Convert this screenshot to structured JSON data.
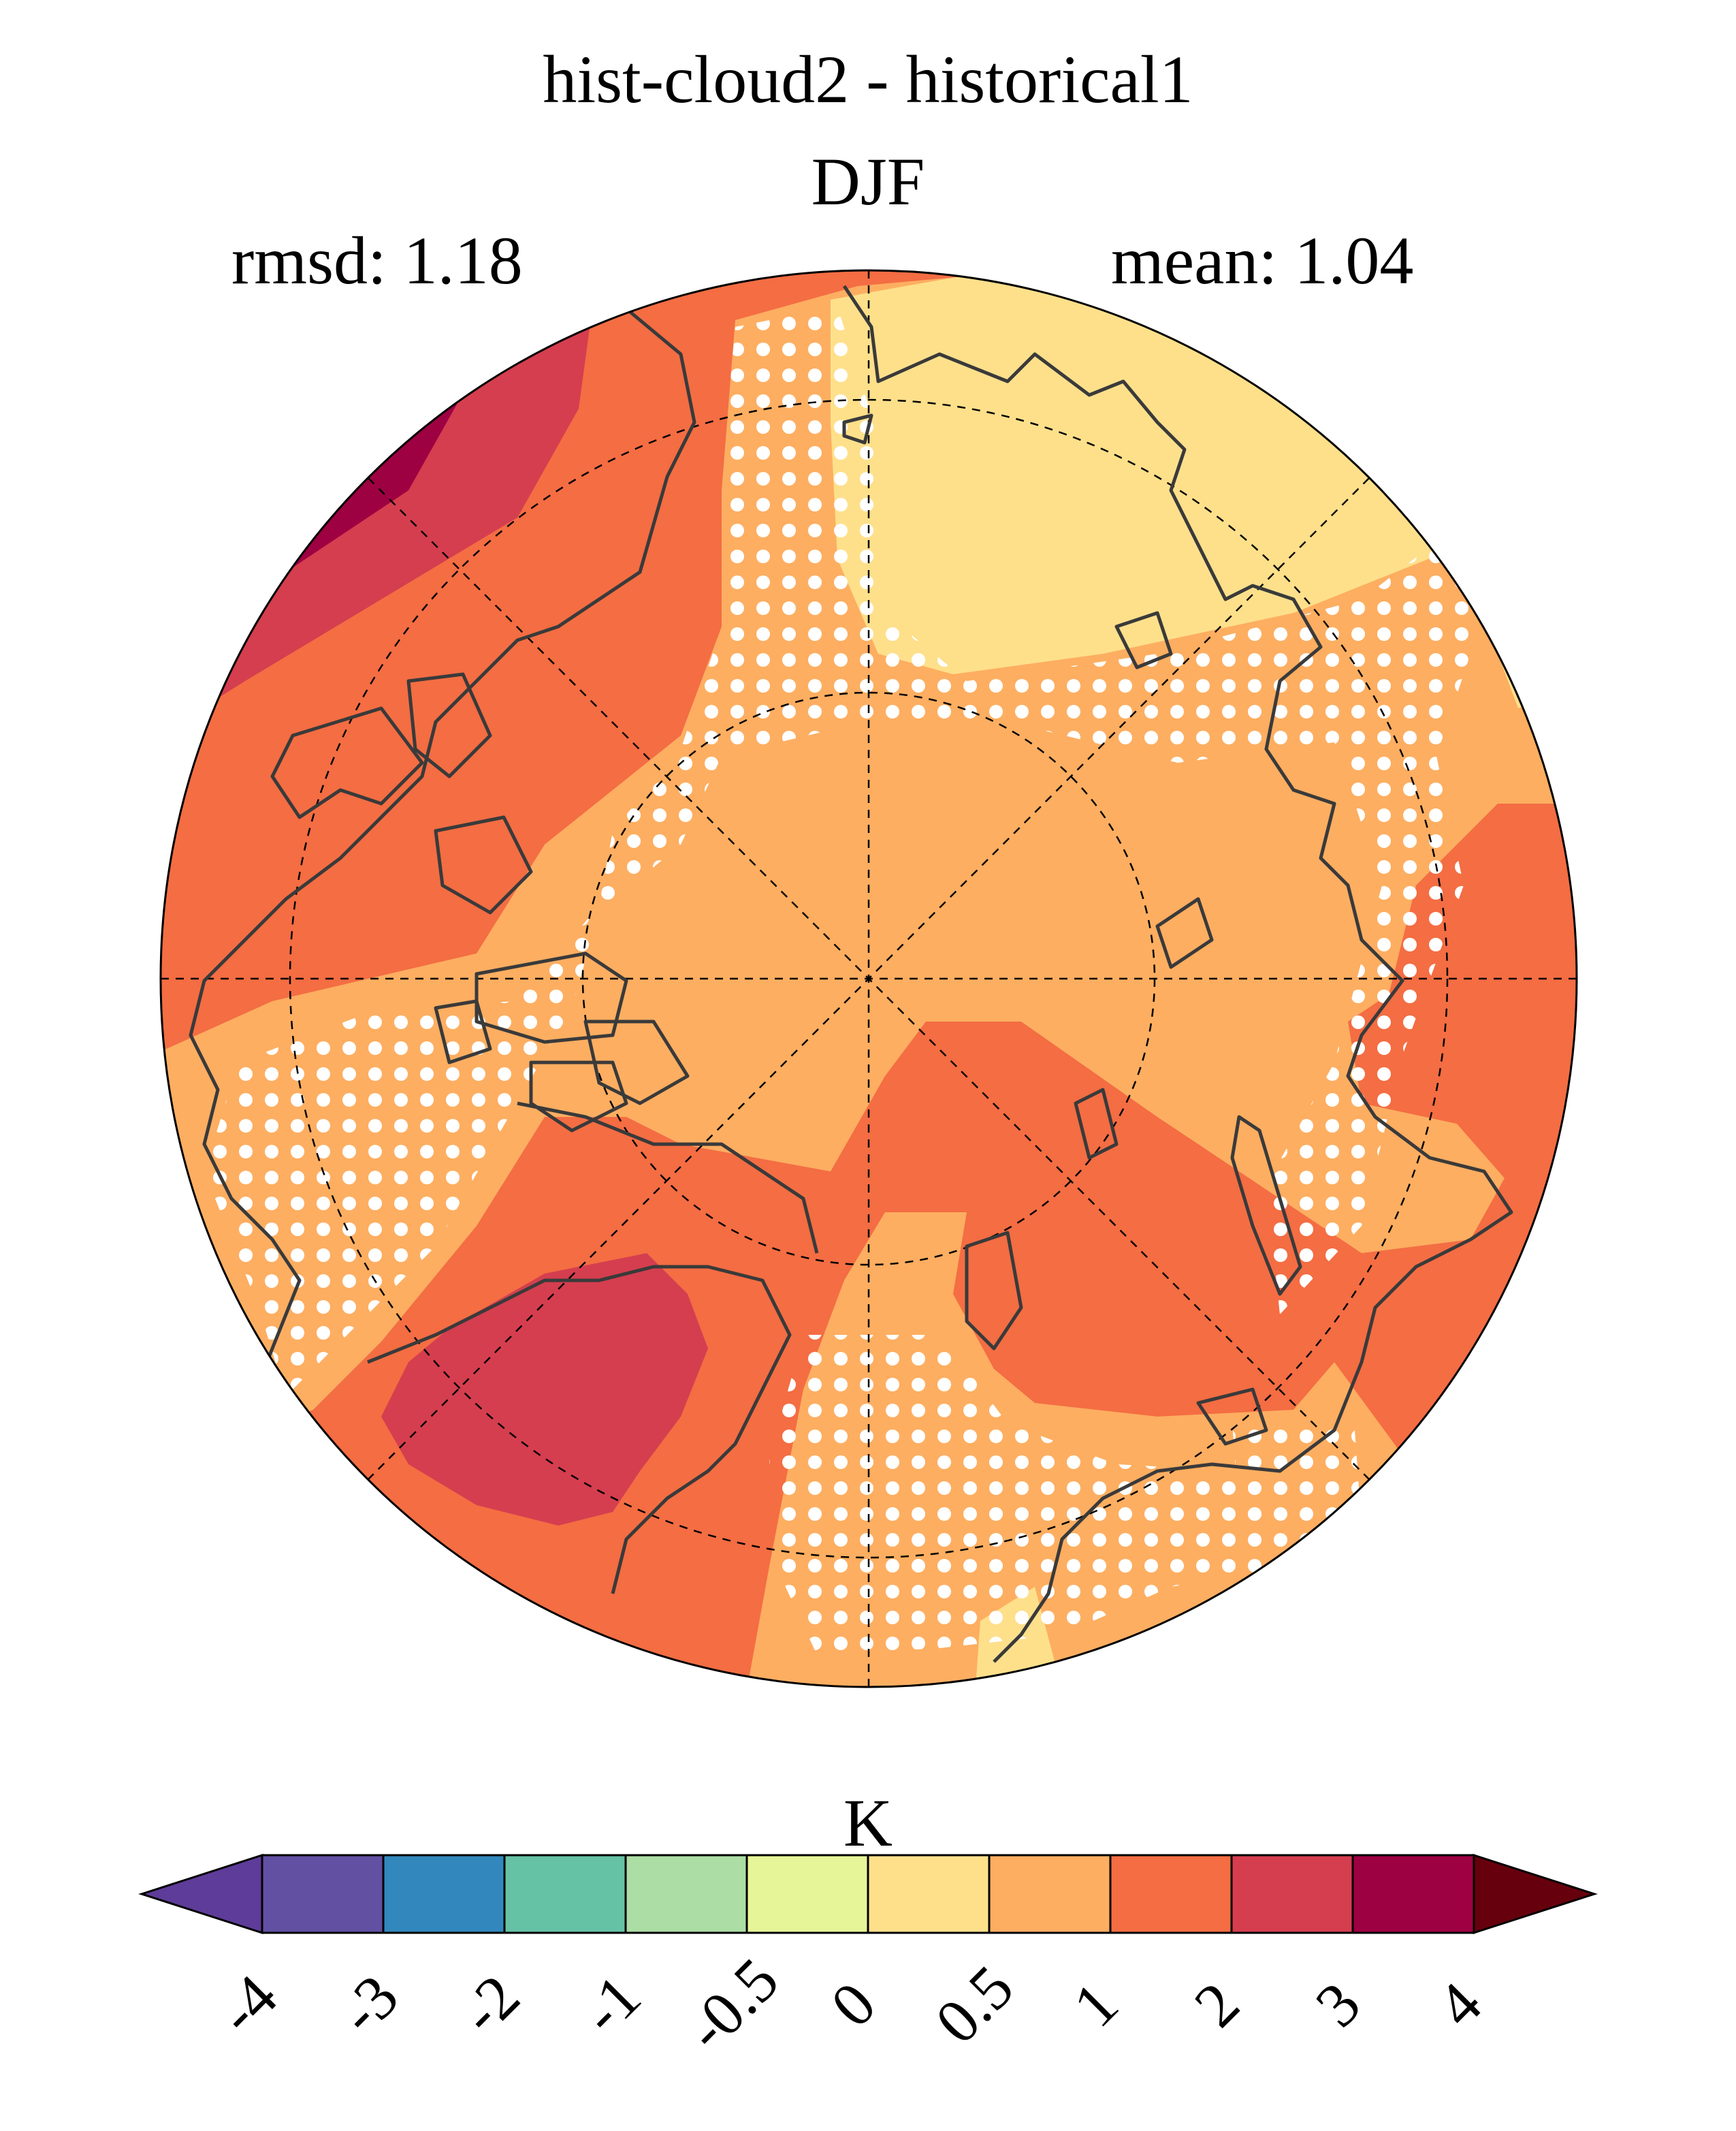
{
  "header": {
    "title": "hist-cloud2 - historical1",
    "subtitle": "DJF",
    "rmsd_label": "rmsd: 1.18",
    "mean_label": "mean: 1.04"
  },
  "colorbar": {
    "unit": "K",
    "tick_labels": [
      "-4",
      "-3",
      "-2",
      "-1",
      "-0.5",
      "0",
      "0.5",
      "1",
      "2",
      "3",
      "4"
    ],
    "colors": {
      "below_-4": "#5e3c99",
      "-4_to_-3": "#6250a3",
      "-3_to_-2": "#3288bd",
      "-2_to_-1": "#66c2a5",
      "-1_to_-0.5": "#abdda4",
      "-0.5_to_0": "#e6f598",
      "0_to_0.5": "#fee08b",
      "0.5_to_1": "#fdae61",
      "1_to_2": "#f46d43",
      "2_to_3": "#d53e4f",
      "3_to_4": "#9e0142",
      "above_4": "#67000d"
    }
  },
  "map": {
    "projection": "north polar stereographic",
    "stippling": "white dots mark significant regions",
    "coastline_color": "#3a3a3a"
  }
}
